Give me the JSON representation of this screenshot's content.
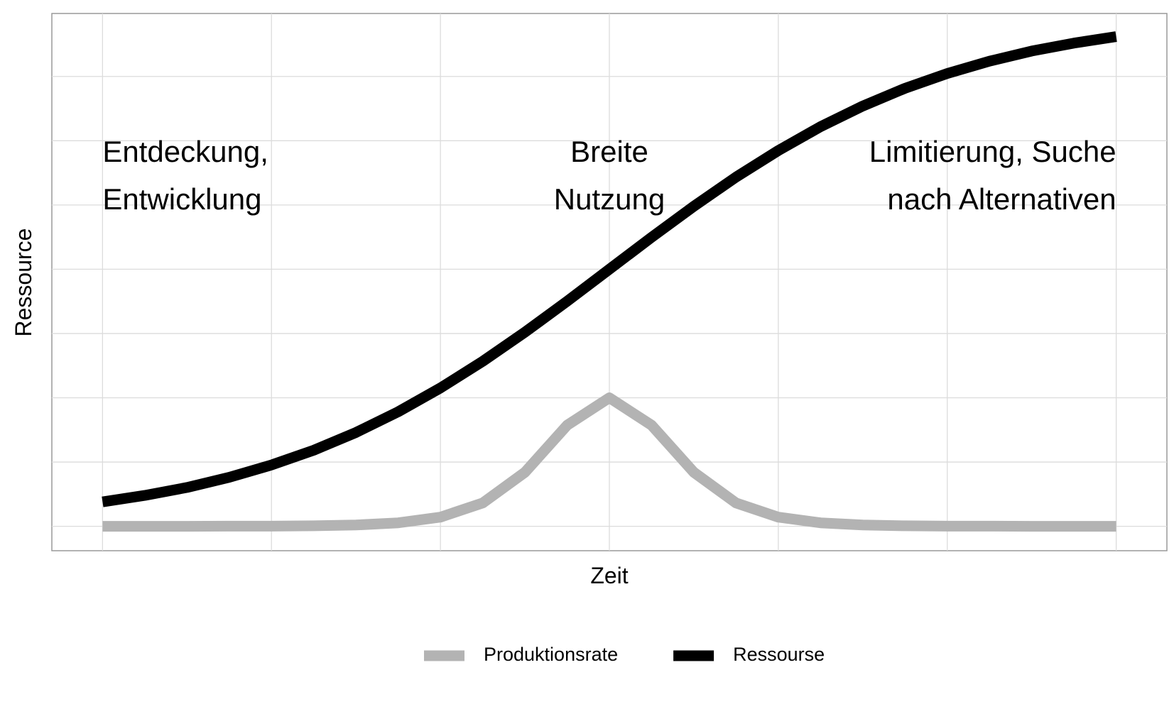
{
  "chart_data": {
    "type": "line",
    "xlabel": "Zeit",
    "ylabel": "Ressource",
    "x": [
      0,
      0.25,
      0.5,
      0.75,
      1,
      1.25,
      1.5,
      1.75,
      2,
      2.25,
      2.5,
      2.75,
      3,
      3.25,
      3.5,
      3.75,
      4,
      4.25,
      4.5,
      4.75,
      5,
      5.25,
      5.5,
      5.75,
      6
    ],
    "series": [
      {
        "name": "Produktionsrate",
        "color": "#b3b3b3",
        "values": [
          0,
          0,
          0,
          0.001,
          0.001,
          0.004,
          0.01,
          0.027,
          0.071,
          0.181,
          0.42,
          0.786,
          1,
          0.786,
          0.42,
          0.181,
          0.071,
          0.027,
          0.01,
          0.004,
          0.001,
          0.001,
          0,
          0,
          0
        ]
      },
      {
        "name": "Ressourse",
        "color": "#000000",
        "values": [
          0.19,
          0.24,
          0.302,
          0.381,
          0.477,
          0.592,
          0.73,
          0.891,
          1.076,
          1.283,
          1.51,
          1.751,
          2,
          2.249,
          2.49,
          2.717,
          2.924,
          3.109,
          3.27,
          3.408,
          3.523,
          3.619,
          3.698,
          3.76,
          3.81
        ]
      }
    ],
    "annotations": [
      [
        "Entdeckung,",
        "Entwicklung"
      ],
      [
        "Breite",
        "Nutzung"
      ],
      [
        "Limitierung, Suche",
        "nach Alternativen"
      ]
    ],
    "xlim": [
      -0.3,
      6.3
    ],
    "ylim": [
      -0.19,
      3.99
    ],
    "xticks": [
      0,
      1,
      2,
      3,
      4,
      5,
      6
    ],
    "yticks": [
      0,
      0.5,
      1,
      1.5,
      2,
      2.5,
      3,
      3.5
    ],
    "grid": true,
    "legend": "bottom"
  }
}
